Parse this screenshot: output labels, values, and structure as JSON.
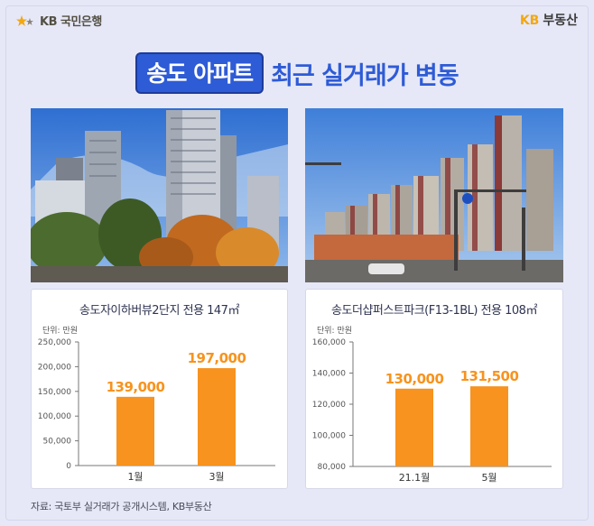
{
  "header": {
    "bank_logo_text": "KB 국민은행",
    "service_logo_kb": "KB",
    "service_logo_text": "부동산"
  },
  "title": {
    "highlight": "송도 아파트",
    "rest": "최근 실거래가 변동"
  },
  "photos": [
    {
      "icon": "apartment-photo-songdo-the-sharp-harbor-view"
    },
    {
      "icon": "apartment-photo-songdo-the-sharp-first-park"
    }
  ],
  "chart_data": [
    {
      "type": "bar",
      "title": "송도자이하버뷰2단지 전용 147㎡",
      "unit_label": "단위: 만원",
      "categories": [
        "1월",
        "3월"
      ],
      "values": [
        139000,
        197000
      ],
      "value_labels": [
        "139,000",
        "197,000"
      ],
      "yticks": [
        "0",
        "50,000",
        "100,000",
        "150,000",
        "200,000",
        "250,000"
      ],
      "ylim": [
        0,
        250000
      ],
      "bar_color": "#f7931e",
      "label_color": "#f7931e",
      "grid": false
    },
    {
      "type": "bar",
      "title": "송도더샵퍼스트파크(F13-1BL) 전용 108㎡",
      "unit_label": "단위: 만원",
      "categories": [
        "21.1월",
        "5월"
      ],
      "values": [
        130000,
        131500
      ],
      "value_labels": [
        "130,000",
        "131,500"
      ],
      "yticks": [
        "80,000",
        "100,000",
        "120,000",
        "140,000",
        "160,000"
      ],
      "ylim": [
        80000,
        160000
      ],
      "bar_color": "#f7931e",
      "label_color": "#f7931e",
      "grid": false
    }
  ],
  "source": "자료: 국토부 실거래가 공개시스템, KB부동산"
}
